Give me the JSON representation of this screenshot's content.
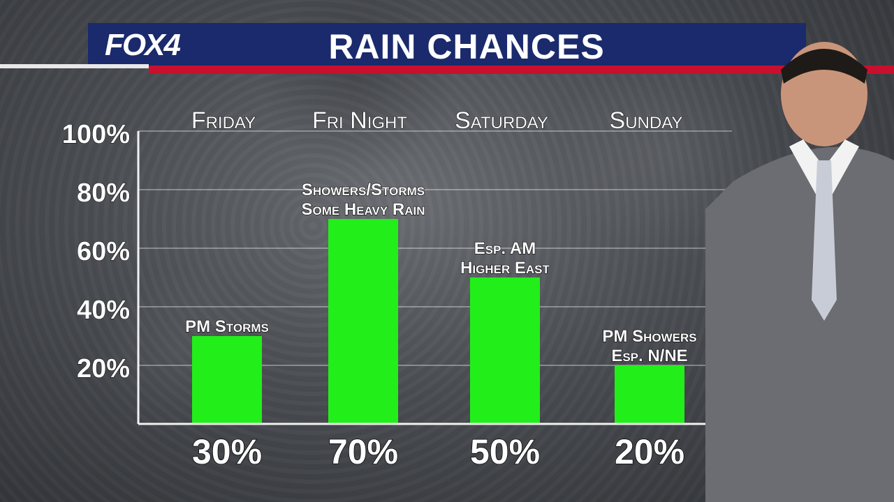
{
  "header": {
    "logo": "FOX4",
    "title": "RAIN CHANCES"
  },
  "colors": {
    "header_blue": "#1a2a6c",
    "header_red": "#c8102e",
    "bar_green": "#22ee1a"
  },
  "chart_data": {
    "type": "bar",
    "title": "RAIN CHANCES",
    "categories": [
      "Friday",
      "Fri Night",
      "Saturday",
      "Sunday"
    ],
    "values": [
      30,
      70,
      50,
      20
    ],
    "value_labels": [
      "30%",
      "70%",
      "50%",
      "20%"
    ],
    "annotations": [
      [
        "PM Storms"
      ],
      [
        "Showers/Storms",
        "Some Heavy Rain"
      ],
      [
        "Esp. AM",
        "Higher East"
      ],
      [
        "PM Showers",
        "Esp. N/NE"
      ]
    ],
    "yticks": [
      20,
      40,
      60,
      80,
      100
    ],
    "ytick_labels": [
      "20%",
      "40%",
      "60%",
      "80%",
      "100%"
    ],
    "ylim": [
      0,
      100
    ],
    "grid": true,
    "xlabel": "",
    "ylabel": ""
  }
}
